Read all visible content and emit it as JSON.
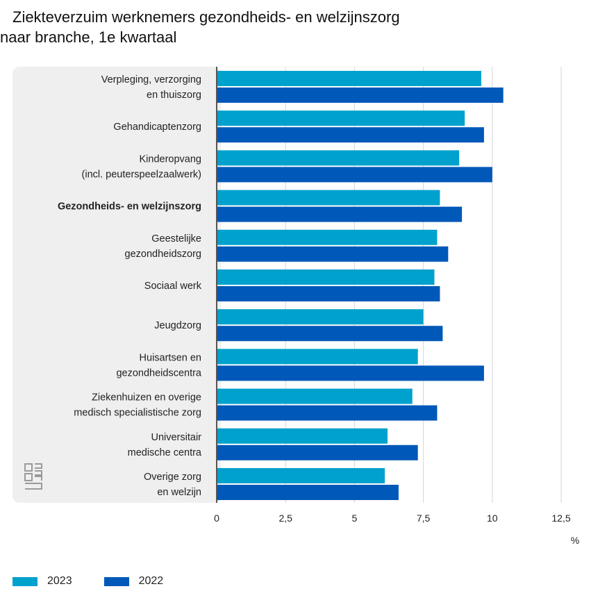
{
  "title_line1": "Ziekteverzuim werknemers gezondheids- en welzijnszorg",
  "title_line2": "naar branche, 1e kwartaal",
  "chart_data": {
    "type": "bar",
    "orientation": "horizontal",
    "categories": [
      [
        "Verpleging, verzorging",
        "en thuiszorg"
      ],
      [
        "Gehandicaptenzorg"
      ],
      [
        "Kinderopvang",
        "(incl. peuterspeelzaalwerk)"
      ],
      [
        "Gezondheids- en welzijnszorg"
      ],
      [
        "Geestelijke",
        "gezondheidszorg"
      ],
      [
        "Sociaal werk"
      ],
      [
        "Jeugdzorg"
      ],
      [
        "Huisartsen en",
        "gezondheidscentra"
      ],
      [
        "Ziekenhuizen en overige",
        "medisch specialistische zorg"
      ],
      [
        "Universitair",
        "medische centra"
      ],
      [
        "Overige zorg",
        "en welzijn"
      ]
    ],
    "bold_category_index": 3,
    "series": [
      {
        "name": "2023",
        "color": "#00a1cd",
        "values": [
          9.6,
          9.0,
          8.8,
          8.1,
          8.0,
          7.9,
          7.5,
          7.3,
          7.1,
          6.2,
          6.1
        ]
      },
      {
        "name": "2022",
        "color": "#0058b8",
        "values": [
          10.4,
          9.7,
          10.0,
          8.9,
          8.4,
          8.1,
          8.2,
          9.7,
          8.0,
          7.3,
          6.6
        ]
      }
    ],
    "xlim": [
      0,
      12.5
    ],
    "xticks": [
      "0",
      "2,5",
      "5",
      "7,5",
      "10",
      "12,5"
    ],
    "xlabel": "%",
    "grid": true,
    "legend": "bottom-left"
  }
}
